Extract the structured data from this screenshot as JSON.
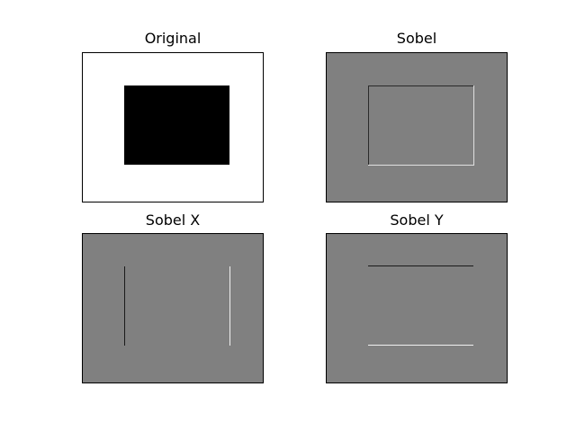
{
  "figure": {
    "panels": [
      {
        "id": "original",
        "title": "Original",
        "background": "#ffffff",
        "features": [
          {
            "kind": "filled-rectangle",
            "color": "#000000"
          }
        ]
      },
      {
        "id": "sobel",
        "title": "Sobel",
        "background": "#808080",
        "features": [
          {
            "kind": "edge-top",
            "color": "#2a2a2a"
          },
          {
            "kind": "edge-left",
            "color": "#2a2a2a"
          },
          {
            "kind": "edge-right",
            "color": "#e0e0e0"
          },
          {
            "kind": "edge-bottom",
            "color": "#e0e0e0"
          }
        ]
      },
      {
        "id": "sobel-x",
        "title": "Sobel X",
        "background": "#808080",
        "features": [
          {
            "kind": "edge-left",
            "color": "#1a1a1a"
          },
          {
            "kind": "edge-right",
            "color": "#f0f0f0"
          }
        ]
      },
      {
        "id": "sobel-y",
        "title": "Sobel Y",
        "background": "#808080",
        "features": [
          {
            "kind": "edge-top",
            "color": "#1a1a1a"
          },
          {
            "kind": "edge-bottom",
            "color": "#f0f0f0"
          }
        ]
      }
    ]
  }
}
